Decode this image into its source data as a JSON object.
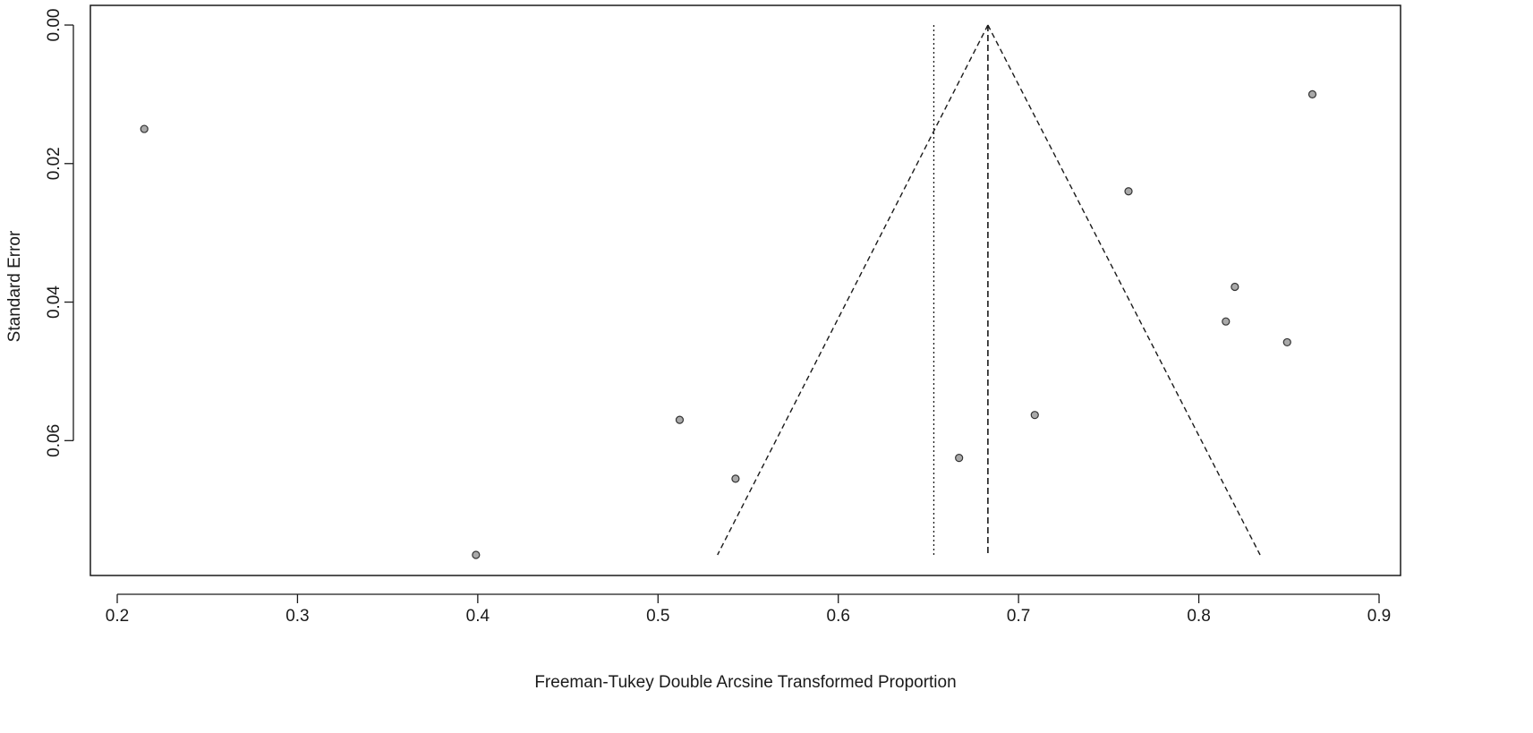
{
  "chart_data": {
    "type": "scatter",
    "title": "",
    "xlabel": "Freeman-Tukey Double Arcsine Transformed Proportion",
    "ylabel": "Standard Error",
    "xlim": [
      0.2,
      0.9
    ],
    "ylim": [
      0.0,
      0.0765
    ],
    "y_reversed": true,
    "x_ticks": [
      0.2,
      0.3,
      0.4,
      0.5,
      0.6,
      0.7,
      0.8,
      0.9
    ],
    "x_tick_labels": [
      "0.2",
      "0.3",
      "0.4",
      "0.5",
      "0.6",
      "0.7",
      "0.8",
      "0.9"
    ],
    "y_ticks": [
      0.0,
      0.02,
      0.04,
      0.06
    ],
    "y_tick_labels": [
      "0.00",
      "0.02",
      "0.04",
      "0.06"
    ],
    "grid": false,
    "points": [
      {
        "x": 0.215,
        "y": 0.015
      },
      {
        "x": 0.399,
        "y": 0.0765
      },
      {
        "x": 0.512,
        "y": 0.057
      },
      {
        "x": 0.543,
        "y": 0.0655
      },
      {
        "x": 0.667,
        "y": 0.0625
      },
      {
        "x": 0.709,
        "y": 0.0563
      },
      {
        "x": 0.761,
        "y": 0.024
      },
      {
        "x": 0.815,
        "y": 0.0428
      },
      {
        "x": 0.82,
        "y": 0.0378
      },
      {
        "x": 0.849,
        "y": 0.0458
      },
      {
        "x": 0.863,
        "y": 0.01
      }
    ],
    "pooled_estimate": 0.683,
    "reference_line": 0.653,
    "funnel": {
      "apex_x": 0.683,
      "apex_y": 0.0,
      "left_x": 0.533,
      "right_x": 0.834,
      "base_y": 0.0765
    },
    "colors": {
      "point_fill": "#a9a9a9",
      "point_stroke": "#333333",
      "line": "#1a1a1a",
      "axis": "#1a1a1a"
    }
  }
}
